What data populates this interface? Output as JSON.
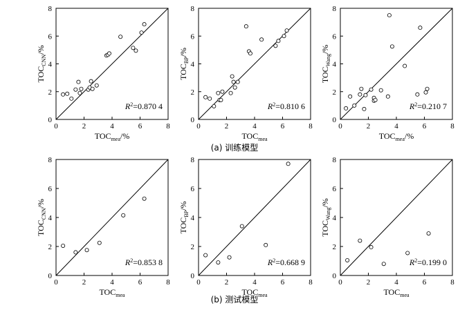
{
  "captions": {
    "top": "(a) 训练模型",
    "bottom": "(b) 测试模型"
  },
  "chart_data": [
    {
      "type": "scatter",
      "id": "train-cnn",
      "xlabel": {
        "base": "TOC",
        "sub": "mea",
        "tail": "/%"
      },
      "ylabel": {
        "base": "TOC",
        "sub": "CNN",
        "tail": "/%"
      },
      "xlim": [
        0,
        8
      ],
      "ylim": [
        0,
        8
      ],
      "xticks": [
        "0",
        "2",
        "4",
        "6",
        "8"
      ],
      "yticks": [
        "0",
        "2",
        "4",
        "6",
        "8"
      ],
      "r2": {
        "symbol": "R",
        "sup": "2",
        "value": "=0.870 4"
      },
      "x": [
        0.5,
        0.8,
        1.1,
        1.4,
        1.6,
        1.7,
        1.8,
        2.3,
        2.4,
        2.5,
        2.6,
        2.9,
        3.6,
        3.7,
        3.8,
        4.6,
        5.5,
        5.7,
        6.1,
        6.3
      ],
      "y": [
        1.8,
        1.85,
        1.5,
        2.15,
        2.7,
        1.9,
        2.2,
        2.15,
        2.3,
        2.75,
        2.2,
        2.45,
        4.6,
        4.65,
        4.75,
        5.95,
        5.15,
        4.95,
        6.25,
        6.85
      ]
    },
    {
      "type": "scatter",
      "id": "train-bp",
      "xlabel": {
        "base": "TOC",
        "sub": "mea",
        "tail": ""
      },
      "ylabel": {
        "base": "TOC",
        "sub": "BP",
        "tail": "/%"
      },
      "xlim": [
        0,
        8
      ],
      "ylim": [
        0,
        8
      ],
      "xticks": [
        "0",
        "2",
        "4",
        "6",
        "8"
      ],
      "yticks": [
        "0",
        "2",
        "4",
        "6",
        "8"
      ],
      "r2": {
        "symbol": "R",
        "sup": "2",
        "value": "=0.810 6"
      },
      "x": [
        0.5,
        0.8,
        1.1,
        1.4,
        1.5,
        1.6,
        1.7,
        2.3,
        2.4,
        2.5,
        2.6,
        2.8,
        3.4,
        3.6,
        3.7,
        4.5,
        5.5,
        5.7,
        6.1,
        6.3
      ],
      "y": [
        1.6,
        1.5,
        0.95,
        1.9,
        1.4,
        1.4,
        2.0,
        1.9,
        3.1,
        2.7,
        2.3,
        2.7,
        6.7,
        4.9,
        4.75,
        5.75,
        5.3,
        5.65,
        6.0,
        6.4
      ]
    },
    {
      "type": "scatter",
      "id": "train-wang",
      "xlabel": {
        "base": "TOC",
        "sub": "mea",
        "tail": "/%"
      },
      "ylabel": {
        "base": "TOC",
        "sub": "Wang",
        "tail": "/%"
      },
      "xlim": [
        0,
        8
      ],
      "ylim": [
        0,
        8
      ],
      "xticks": [
        "0",
        "2",
        "4",
        "6",
        "8"
      ],
      "yticks": [
        "0",
        "2",
        "4",
        "6",
        "8"
      ],
      "r2": {
        "symbol": "R",
        "sup": "2",
        "value": "=0.210 7"
      },
      "x": [
        0.4,
        0.7,
        1.0,
        1.4,
        1.5,
        1.7,
        1.8,
        2.2,
        2.4,
        2.4,
        2.5,
        2.9,
        3.4,
        3.5,
        3.7,
        4.6,
        5.5,
        5.7,
        6.1,
        6.2
      ],
      "y": [
        0.8,
        1.65,
        1.0,
        1.8,
        2.2,
        0.75,
        1.75,
        2.15,
        1.55,
        1.35,
        1.4,
        2.1,
        1.65,
        7.5,
        5.25,
        3.85,
        1.8,
        6.6,
        1.95,
        2.2
      ]
    },
    {
      "type": "scatter",
      "id": "test-cnn",
      "xlabel": {
        "base": "TOC",
        "sub": "mea",
        "tail": ""
      },
      "ylabel": {
        "base": "TOC",
        "sub": "CNN",
        "tail": "/%"
      },
      "xlim": [
        0,
        8
      ],
      "ylim": [
        0,
        8
      ],
      "xticks": [
        "0",
        "2",
        "4",
        "6",
        "8"
      ],
      "yticks": [
        "0",
        "2",
        "4",
        "6",
        "8"
      ],
      "r2": {
        "symbol": "R",
        "sup": "2",
        "value": "=0.853 8"
      },
      "x": [
        0.5,
        1.4,
        2.2,
        3.1,
        4.8,
        6.3
      ],
      "y": [
        2.05,
        1.6,
        1.75,
        2.25,
        4.15,
        5.3
      ]
    },
    {
      "type": "scatter",
      "id": "test-bp",
      "xlabel": {
        "base": "TOC",
        "sub": "mea",
        "tail": ""
      },
      "ylabel": {
        "base": "TOC",
        "sub": "BP",
        "tail": "/%"
      },
      "xlim": [
        0,
        8
      ],
      "ylim": [
        0,
        8
      ],
      "xticks": [
        "0",
        "2",
        "4",
        "6",
        "8"
      ],
      "yticks": [
        "0",
        "2",
        "4",
        "6",
        "8"
      ],
      "r2": {
        "symbol": "R",
        "sup": "2",
        "value": "=0.668 9"
      },
      "x": [
        0.5,
        1.4,
        2.2,
        3.1,
        4.8,
        6.4
      ],
      "y": [
        1.4,
        0.9,
        1.25,
        3.4,
        2.1,
        7.7
      ]
    },
    {
      "type": "scatter",
      "id": "test-wang",
      "xlabel": {
        "base": "TOC",
        "sub": "mea",
        "tail": ""
      },
      "ylabel": {
        "base": "TOC",
        "sub": "Wang",
        "tail": "/%"
      },
      "xlim": [
        0,
        8
      ],
      "ylim": [
        0,
        8
      ],
      "xticks": [
        "0",
        "2",
        "4",
        "6",
        "8"
      ],
      "yticks": [
        "0",
        "2",
        "4",
        "6",
        "8"
      ],
      "r2": {
        "symbol": "R",
        "sup": "2",
        "value": "=0.199 0"
      },
      "x": [
        0.5,
        1.4,
        2.2,
        3.1,
        4.8,
        6.3
      ],
      "y": [
        1.05,
        2.4,
        1.95,
        0.8,
        1.55,
        2.9
      ]
    }
  ]
}
